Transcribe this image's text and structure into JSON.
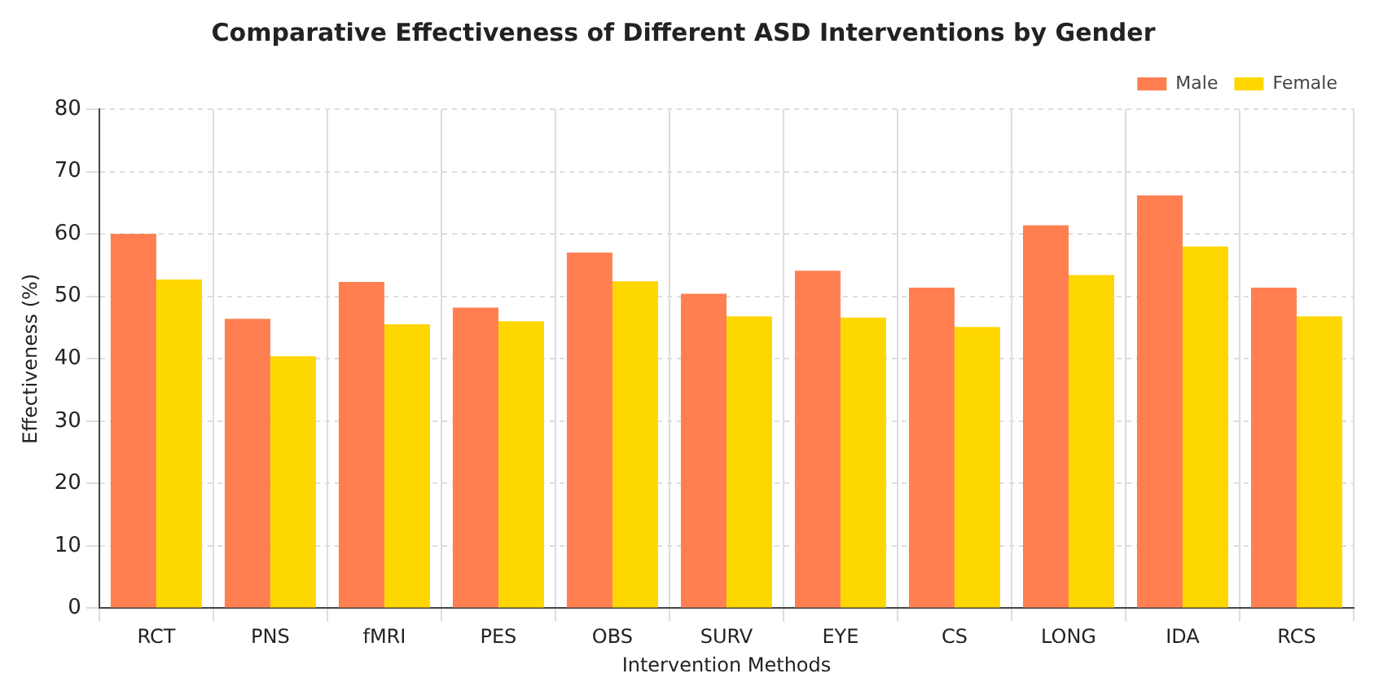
{
  "chart_data": {
    "type": "bar",
    "title": "Comparative Effectiveness of Different ASD Interventions by Gender",
    "xlabel": "Intervention Methods",
    "ylabel": "Effectiveness (%)",
    "categories": [
      "RCT",
      "PNS",
      "fMRI",
      "PES",
      "OBS",
      "SURV",
      "EYE",
      "CS",
      "LONG",
      "IDA",
      "RCS"
    ],
    "series": [
      {
        "name": "Male",
        "color": "#ff7f50",
        "values": [
          60.0,
          46.4,
          52.3,
          48.2,
          57.0,
          50.4,
          54.1,
          51.4,
          61.4,
          66.2,
          51.4
        ]
      },
      {
        "name": "Female",
        "color": "#ffd700",
        "values": [
          52.7,
          40.4,
          45.5,
          46.0,
          52.4,
          46.8,
          46.6,
          45.1,
          53.4,
          58.0,
          46.8
        ]
      }
    ],
    "ylim": [
      0,
      80
    ],
    "yticks": [
      0,
      10,
      20,
      30,
      40,
      50,
      60,
      70,
      80
    ],
    "grid": true,
    "legend": "top right"
  }
}
